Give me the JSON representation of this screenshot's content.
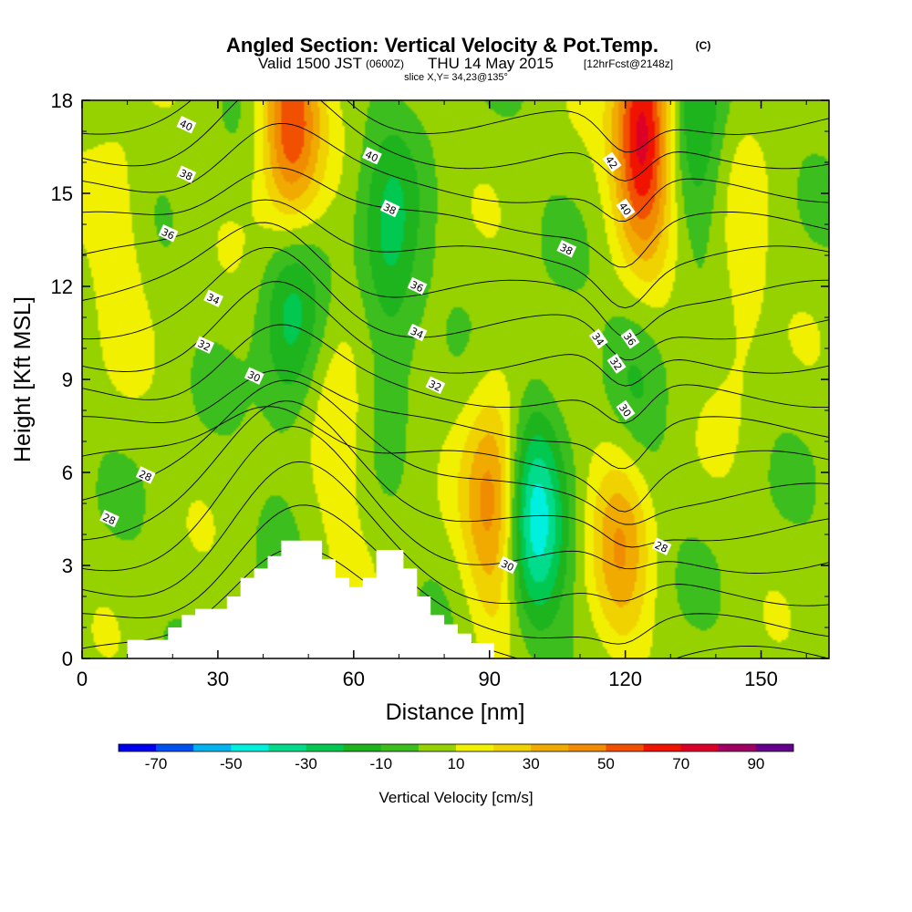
{
  "title": {
    "main": "Angled Section: Vertical Velocity & Pot.Temp.",
    "unit_mark": "(C)",
    "valid_prefix": "Valid 1500 JST",
    "valid_utc": "(0600Z)",
    "valid_date": "THU 14 May 2015",
    "forecast": "[12hrFcst@2148z]",
    "slice": "slice X,Y= 34,23@135°"
  },
  "colors": {
    "fill_bins": [
      "#0000f0",
      "#0050f0",
      "#00b4f0",
      "#00f0e0",
      "#00dc8c",
      "#00c850",
      "#1eb41e",
      "#3cbe1e",
      "#96d200",
      "#f0f000",
      "#f0d200",
      "#f0aa00",
      "#f08c00",
      "#f05000",
      "#f01400",
      "#dc0028",
      "#a00064",
      "#64008c"
    ],
    "contour": "#000000",
    "terrain": "#ffffff"
  },
  "chart_data": {
    "type": "heatmap",
    "xlabel": "Distance [nm]",
    "ylabel": "Height [Kft MSL]",
    "xlim": [
      0,
      165
    ],
    "ylim": [
      0,
      18
    ],
    "x_ticks": [
      "0",
      "30",
      "60",
      "90",
      "120",
      "150"
    ],
    "y_ticks": [
      "0",
      "3",
      "6",
      "9",
      "12",
      "15",
      "18"
    ],
    "colorbar": {
      "label": "Vertical Velocity [cm/s]",
      "bounds": [
        -80,
        -70,
        -60,
        -50,
        -40,
        -30,
        -20,
        -10,
        0,
        10,
        20,
        30,
        40,
        50,
        60,
        70,
        80,
        90,
        100
      ],
      "tick_labels": [
        "-70",
        "-50",
        "-30",
        "-10",
        "10",
        "30",
        "50",
        "70",
        "90"
      ]
    },
    "updrafts_cm_s": [
      {
        "x": 46,
        "y": 17.2,
        "value": 55
      },
      {
        "x": 124,
        "y": 16.8,
        "value": 75
      },
      {
        "x": 91,
        "y": 5.0,
        "value": 42
      },
      {
        "x": 119,
        "y": 3.8,
        "value": 32
      },
      {
        "x": 57,
        "y": 7.5,
        "value": 16
      },
      {
        "x": 8,
        "y": 13.5,
        "value": 14
      },
      {
        "x": 145,
        "y": 12.0,
        "value": 14
      }
    ],
    "downdrafts_cm_s": [
      {
        "x": 100,
        "y": 4.5,
        "value": -48
      },
      {
        "x": 68,
        "y": 13.0,
        "value": -28
      },
      {
        "x": 46,
        "y": 11.0,
        "value": -28
      },
      {
        "x": 122,
        "y": 9.5,
        "value": -15
      },
      {
        "x": 136,
        "y": 17.7,
        "value": -25
      }
    ],
    "pot_temp_contours_C": {
      "levels": [
        26,
        27,
        28,
        29,
        30,
        31,
        32,
        33,
        34,
        35,
        36,
        37,
        38,
        39,
        40,
        41,
        42
      ],
      "labels": [
        {
          "text": "40",
          "x": 23,
          "y": 17.2
        },
        {
          "text": "40",
          "x": 64,
          "y": 16.2
        },
        {
          "text": "42",
          "x": 117,
          "y": 16.0
        },
        {
          "text": "38",
          "x": 23,
          "y": 15.6
        },
        {
          "text": "38",
          "x": 68,
          "y": 14.5
        },
        {
          "text": "40",
          "x": 120,
          "y": 14.5
        },
        {
          "text": "36",
          "x": 19,
          "y": 13.7
        },
        {
          "text": "38",
          "x": 107,
          "y": 13.2
        },
        {
          "text": "36",
          "x": 74,
          "y": 12.0
        },
        {
          "text": "34",
          "x": 29,
          "y": 11.6
        },
        {
          "text": "34",
          "x": 74,
          "y": 10.5
        },
        {
          "text": "34",
          "x": 114,
          "y": 10.3
        },
        {
          "text": "36",
          "x": 121,
          "y": 10.3
        },
        {
          "text": "32",
          "x": 27,
          "y": 10.1
        },
        {
          "text": "32",
          "x": 118,
          "y": 9.5
        },
        {
          "text": "30",
          "x": 38,
          "y": 9.1
        },
        {
          "text": "32",
          "x": 78,
          "y": 8.8
        },
        {
          "text": "30",
          "x": 120,
          "y": 8.0
        },
        {
          "text": "28",
          "x": 14,
          "y": 5.9
        },
        {
          "text": "28",
          "x": 6,
          "y": 4.5
        },
        {
          "text": "30",
          "x": 94,
          "y": 3.0
        },
        {
          "text": "28",
          "x": 128,
          "y": 3.6
        }
      ]
    },
    "terrain_kft": {
      "x": [
        10,
        16,
        19,
        22,
        25,
        29,
        32,
        35,
        38,
        41,
        44,
        47,
        50,
        53,
        56,
        59,
        62,
        65,
        68,
        71,
        74,
        77,
        80,
        83,
        86,
        89,
        91
      ],
      "height": [
        0.6,
        0.6,
        1.0,
        1.4,
        1.6,
        1.6,
        2.0,
        2.6,
        2.9,
        3.3,
        3.8,
        3.8,
        3.8,
        3.2,
        2.6,
        2.3,
        2.6,
        3.5,
        3.5,
        2.9,
        2.0,
        1.4,
        1.1,
        0.8,
        0.5,
        0.5,
        0.0
      ]
    }
  }
}
